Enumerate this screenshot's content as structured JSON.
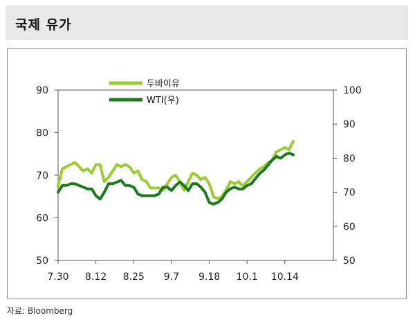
{
  "header": {
    "title": "국제 유가"
  },
  "source": "자료: Bloomberg",
  "chart_data": {
    "type": "line",
    "title": "국제 유가",
    "x_ticks": [
      "7.30",
      "8.12",
      "8.25",
      "9.7",
      "9.18",
      "10.1",
      "10.14"
    ],
    "x_tick_index": [
      0,
      9,
      18,
      27,
      36,
      45,
      54
    ],
    "y_left": {
      "ticks": [
        50,
        60,
        70,
        80,
        90
      ],
      "range": [
        50,
        90
      ]
    },
    "y_right": {
      "ticks": [
        50,
        60,
        70,
        80,
        90,
        100
      ],
      "range": [
        50,
        100
      ]
    },
    "legend_position": "top-left",
    "series": [
      {
        "name": "두바이유",
        "axis": "left",
        "color": "#9acd32",
        "values": [
          67.5,
          71.5,
          72.0,
          72.5,
          73.0,
          72.0,
          71.0,
          71.5,
          70.5,
          72.5,
          72.5,
          68.5,
          69.5,
          71.0,
          72.5,
          72.0,
          72.5,
          72.0,
          70.5,
          71.0,
          69.0,
          68.5,
          67.0,
          67.0,
          67.0,
          66.5,
          68.0,
          69.5,
          70.0,
          68.5,
          66.5,
          68.5,
          70.5,
          70.0,
          69.0,
          69.5,
          68.0,
          65.0,
          64.5,
          65.0,
          66.5,
          68.5,
          68.0,
          68.5,
          67.5,
          68.5,
          69.5,
          70.5,
          71.5,
          72.0,
          73.0,
          73.5,
          75.5,
          76.0,
          76.5,
          76.0,
          78.0
        ]
      },
      {
        "name": "WTI(우)",
        "axis": "right",
        "color": "#1b7a1b",
        "values": [
          70.0,
          72.0,
          72.0,
          72.5,
          72.5,
          72.0,
          71.5,
          71.0,
          71.0,
          69.0,
          68.0,
          70.0,
          72.5,
          72.5,
          73.0,
          73.5,
          72.0,
          72.0,
          71.5,
          69.5,
          69.0,
          69.0,
          69.0,
          69.0,
          69.5,
          71.5,
          71.5,
          70.5,
          72.0,
          73.0,
          72.0,
          70.5,
          72.5,
          72.5,
          71.5,
          70.0,
          67.0,
          66.5,
          67.0,
          68.0,
          70.0,
          71.0,
          71.5,
          71.0,
          71.0,
          72.0,
          72.5,
          74.0,
          75.5,
          76.5,
          78.0,
          79.5,
          80.5,
          80.0,
          81.0,
          81.5,
          81.0
        ]
      }
    ]
  }
}
